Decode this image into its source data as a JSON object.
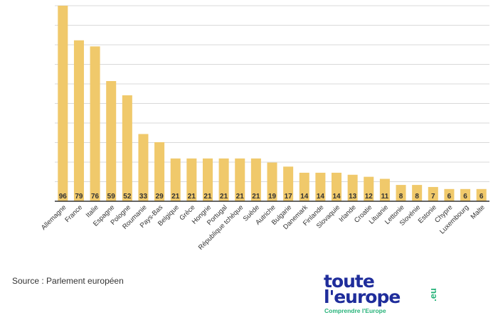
{
  "chart_data": {
    "type": "bar",
    "categories": [
      "Allemagne",
      "France",
      "Italie",
      "Espagne",
      "Pologne",
      "Roumanie",
      "Pays-Bas",
      "Belgique",
      "Grèce",
      "Hongrie",
      "Portugal",
      "République tchèque",
      "Suède",
      "Autriche",
      "Bulgarie",
      "Danemark",
      "Finlande",
      "Slovaquie",
      "Irlande",
      "Croatie",
      "Lituanie",
      "Lettonie",
      "Slovénie",
      "Estonie",
      "Chypre",
      "Luxembourg",
      "Malte"
    ],
    "values": [
      96,
      79,
      76,
      59,
      52,
      33,
      29,
      21,
      21,
      21,
      21,
      21,
      21,
      19,
      17,
      14,
      14,
      14,
      13,
      12,
      11,
      8,
      8,
      7,
      6,
      6,
      6
    ],
    "ylim": [
      0,
      96
    ],
    "grid": true,
    "bar_color": "#f0c96b",
    "grid_color": "#d9d9d9",
    "axis_color": "#333333"
  },
  "source": "Source : Parlement européen",
  "logo": {
    "line1": "toute",
    "line2": "l'europe",
    "tagline": "Comprendre l'Europe",
    "suffix": ".eu",
    "brand_color": "#1f2d9b",
    "accent_color": "#27b37a"
  }
}
